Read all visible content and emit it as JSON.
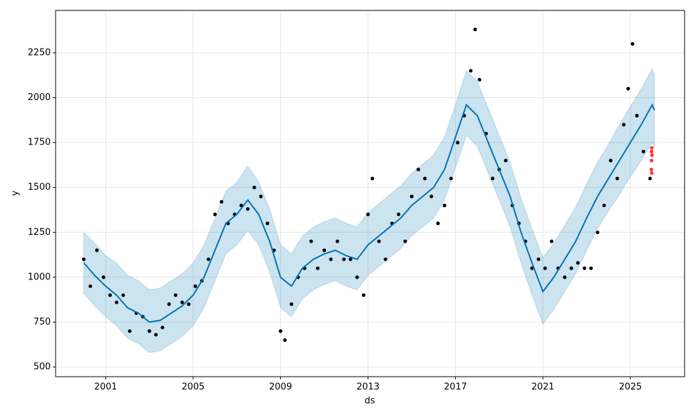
{
  "chart_data": {
    "type": "forecast",
    "xlabel": "ds",
    "ylabel": "y",
    "xlim": [
      1998.71,
      2027.48
    ],
    "ylim": [
      446,
      2486
    ],
    "xticks": [
      2001,
      2005,
      2009,
      2013,
      2017,
      2021,
      2025
    ],
    "yticks": [
      500,
      750,
      1000,
      1250,
      1500,
      1750,
      2000,
      2250
    ],
    "grid": true,
    "band": {
      "color": "#0072b2",
      "x": [
        2000.0,
        2000.5,
        2001.0,
        2001.5,
        2002.0,
        2002.5,
        2003.0,
        2003.5,
        2004.0,
        2004.5,
        2005.0,
        2005.5,
        2006.0,
        2006.5,
        2007.0,
        2007.5,
        2008.0,
        2008.5,
        2009.0,
        2009.5,
        2010.0,
        2010.5,
        2011.0,
        2011.5,
        2012.0,
        2012.5,
        2013.0,
        2013.5,
        2014.0,
        2014.5,
        2015.0,
        2015.5,
        2016.0,
        2016.5,
        2017.0,
        2017.5,
        2018.0,
        2018.5,
        2019.0,
        2019.5,
        2020.0,
        2020.5,
        2021.0,
        2021.5,
        2022.0,
        2022.5,
        2023.0,
        2023.5,
        2024.0,
        2024.5,
        2025.0,
        2025.5,
        2026.0,
        2026.1
      ],
      "upper": [
        1250,
        1190,
        1120,
        1080,
        1010,
        980,
        930,
        940,
        980,
        1020,
        1080,
        1180,
        1330,
        1480,
        1530,
        1620,
        1530,
        1380,
        1180,
        1130,
        1230,
        1280,
        1310,
        1330,
        1300,
        1280,
        1360,
        1410,
        1460,
        1510,
        1580,
        1630,
        1680,
        1780,
        1960,
        2150,
        2090,
        1940,
        1790,
        1640,
        1440,
        1270,
        1110,
        1190,
        1290,
        1390,
        1520,
        1640,
        1740,
        1850,
        1950,
        2050,
        2160,
        2130
      ],
      "lower": [
        910,
        840,
        780,
        730,
        660,
        630,
        580,
        590,
        630,
        670,
        730,
        830,
        980,
        1130,
        1180,
        1260,
        1180,
        1030,
        830,
        780,
        880,
        930,
        960,
        980,
        950,
        930,
        1010,
        1060,
        1110,
        1160,
        1230,
        1280,
        1330,
        1430,
        1610,
        1790,
        1730,
        1580,
        1430,
        1280,
        1080,
        900,
        740,
        820,
        920,
        1020,
        1150,
        1270,
        1370,
        1460,
        1560,
        1650,
        1750,
        1720
      ]
    },
    "forecast": {
      "color": "#0072b2",
      "x": [
        2000.0,
        2000.5,
        2001.0,
        2001.5,
        2002.0,
        2002.5,
        2003.0,
        2003.5,
        2004.0,
        2004.5,
        2005.0,
        2005.5,
        2006.0,
        2006.5,
        2007.0,
        2007.5,
        2008.0,
        2008.5,
        2009.0,
        2009.5,
        2010.0,
        2010.5,
        2011.0,
        2011.5,
        2012.0,
        2012.5,
        2013.0,
        2013.5,
        2014.0,
        2014.5,
        2015.0,
        2015.5,
        2016.0,
        2016.5,
        2017.0,
        2017.5,
        2018.0,
        2018.5,
        2019.0,
        2019.5,
        2020.0,
        2020.5,
        2021.0,
        2021.5,
        2022.0,
        2022.5,
        2023.0,
        2023.5,
        2024.0,
        2024.5,
        2025.0,
        2025.5,
        2026.0,
        2026.1
      ],
      "values": [
        1080,
        1010,
        950,
        900,
        830,
        800,
        750,
        760,
        800,
        840,
        900,
        1000,
        1150,
        1300,
        1350,
        1430,
        1350,
        1200,
        1000,
        950,
        1050,
        1100,
        1130,
        1150,
        1120,
        1100,
        1180,
        1230,
        1280,
        1330,
        1400,
        1450,
        1500,
        1600,
        1780,
        1960,
        1900,
        1750,
        1600,
        1450,
        1250,
        1080,
        920,
        1000,
        1100,
        1200,
        1330,
        1450,
        1550,
        1650,
        1750,
        1850,
        1960,
        1930
      ]
    },
    "observed": {
      "color": "#000000",
      "x": [
        2000.0,
        2000.3,
        2000.6,
        2000.9,
        2001.2,
        2001.5,
        2001.8,
        2002.1,
        2002.4,
        2002.7,
        2003.0,
        2003.3,
        2003.6,
        2003.9,
        2004.2,
        2004.5,
        2004.8,
        2005.1,
        2005.4,
        2005.7,
        2006.0,
        2006.3,
        2006.6,
        2006.9,
        2007.2,
        2007.5,
        2007.8,
        2008.1,
        2008.4,
        2008.7,
        2009.0,
        2009.2,
        2009.5,
        2009.8,
        2010.1,
        2010.4,
        2010.7,
        2011.0,
        2011.3,
        2011.6,
        2011.9,
        2012.2,
        2012.5,
        2012.8,
        2013.0,
        2013.2,
        2013.5,
        2013.8,
        2014.1,
        2014.4,
        2014.7,
        2015.0,
        2015.3,
        2015.6,
        2015.9,
        2016.2,
        2016.5,
        2016.8,
        2017.1,
        2017.4,
        2017.7,
        2017.9,
        2018.1,
        2018.4,
        2018.7,
        2019.0,
        2019.3,
        2019.6,
        2019.9,
        2020.2,
        2020.5,
        2020.8,
        2021.1,
        2021.4,
        2021.7,
        2022.0,
        2022.3,
        2022.6,
        2022.9,
        2023.2,
        2023.5,
        2023.8,
        2024.1,
        2024.4,
        2024.7,
        2024.9,
        2025.1,
        2025.3,
        2025.6,
        2025.9
      ],
      "values": [
        1100,
        950,
        1150,
        1000,
        900,
        860,
        900,
        700,
        800,
        780,
        700,
        680,
        720,
        850,
        900,
        860,
        850,
        950,
        980,
        1100,
        1350,
        1420,
        1300,
        1350,
        1400,
        1380,
        1500,
        1450,
        1300,
        1150,
        700,
        650,
        850,
        1000,
        1050,
        1200,
        1050,
        1150,
        1100,
        1200,
        1100,
        1100,
        1000,
        900,
        1350,
        1550,
        1200,
        1100,
        1300,
        1350,
        1200,
        1450,
        1600,
        1550,
        1450,
        1300,
        1400,
        1550,
        1750,
        1900,
        2150,
        2380,
        2100,
        1800,
        1550,
        1600,
        1650,
        1400,
        1300,
        1200,
        1050,
        1100,
        1050,
        1200,
        1050,
        1000,
        1050,
        1080,
        1050,
        1050,
        1250,
        1400,
        1650,
        1550,
        1850,
        2050,
        2300,
        1900,
        1700,
        1550
      ]
    },
    "holdout": {
      "color": "#ff0000",
      "x": [
        2025.96,
        2025.97,
        2025.97,
        2025.98,
        2025.98,
        2025.99
      ],
      "values": [
        1600,
        1650,
        1700,
        1720,
        1580,
        1680
      ]
    }
  }
}
